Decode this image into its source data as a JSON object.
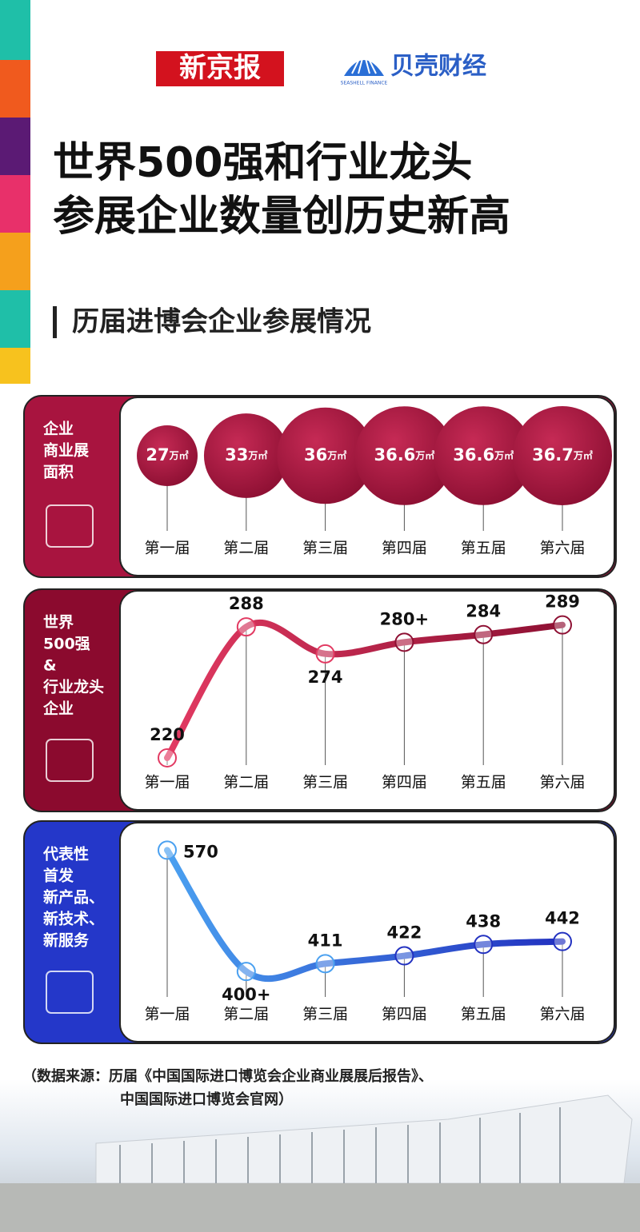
{
  "header": {
    "logo_left": "新京报",
    "logo_right": "贝壳财经",
    "logo_right_sub": "SEASHELL FINANCE",
    "title_lines": [
      "世界500强和行业龙头",
      "参展企业数量创历史新高"
    ],
    "subtitle": "历届进博会企业参展情况"
  },
  "chart_data": [
    {
      "type": "bubble",
      "label_lines": [
        "企业",
        "商业展",
        "面积"
      ],
      "categories": [
        "第一届",
        "第二届",
        "第三届",
        "第四届",
        "第五届",
        "第六届"
      ],
      "values": [
        27,
        33,
        36,
        36.6,
        36.6,
        36.7
      ],
      "unit": "万㎡",
      "color": "#a8143f"
    },
    {
      "type": "line",
      "label_lines": [
        "世界",
        "500强",
        "&",
        "行业龙头",
        "企业"
      ],
      "categories": [
        "第一届",
        "第二届",
        "第三届",
        "第四届",
        "第五届",
        "第六届"
      ],
      "values": [
        220,
        288,
        274,
        280,
        284,
        289
      ],
      "value_labels": [
        "220",
        "288",
        "274",
        "280+",
        "284",
        "289"
      ],
      "ylim": [
        215,
        298
      ],
      "colors": [
        "#e23a62",
        "#8e1033"
      ],
      "panel_color": "#8b0a2e"
    },
    {
      "type": "line",
      "label_lines": [
        "代表性",
        "首发",
        "新产品、",
        "新技术、",
        "新服务"
      ],
      "categories": [
        "第一届",
        "第二届",
        "第三届",
        "第四届",
        "第五届",
        "第六届"
      ],
      "values": [
        570,
        400,
        411,
        422,
        438,
        442
      ],
      "value_labels": [
        "570",
        "400+",
        "411",
        "422",
        "438",
        "442"
      ],
      "ylim": [
        361,
        585
      ],
      "colors": [
        "#4aa0f0",
        "#2231c0"
      ],
      "panel_color": "#2437c9"
    }
  ],
  "source_lines": [
    "（数据来源：历届《中国国际进口博览会企业商业展展后报告》、",
    "中国国际进口博览会官网）"
  ]
}
